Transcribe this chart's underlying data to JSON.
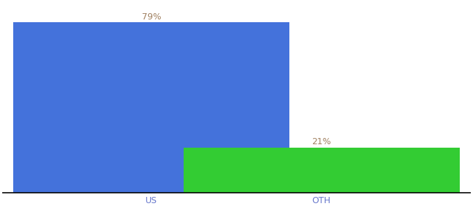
{
  "categories": [
    "US",
    "OTH"
  ],
  "values": [
    79,
    21
  ],
  "bar_colors": [
    "#4472db",
    "#33cc33"
  ],
  "label_color": "#a08060",
  "labels": [
    "79%",
    "21%"
  ],
  "background_color": "#ffffff",
  "bar_width": 0.65,
  "ylim": [
    0,
    88
  ],
  "label_fontsize": 9,
  "tick_fontsize": 9,
  "tick_color": "#6677cc",
  "x_positions": [
    0.3,
    0.7
  ]
}
